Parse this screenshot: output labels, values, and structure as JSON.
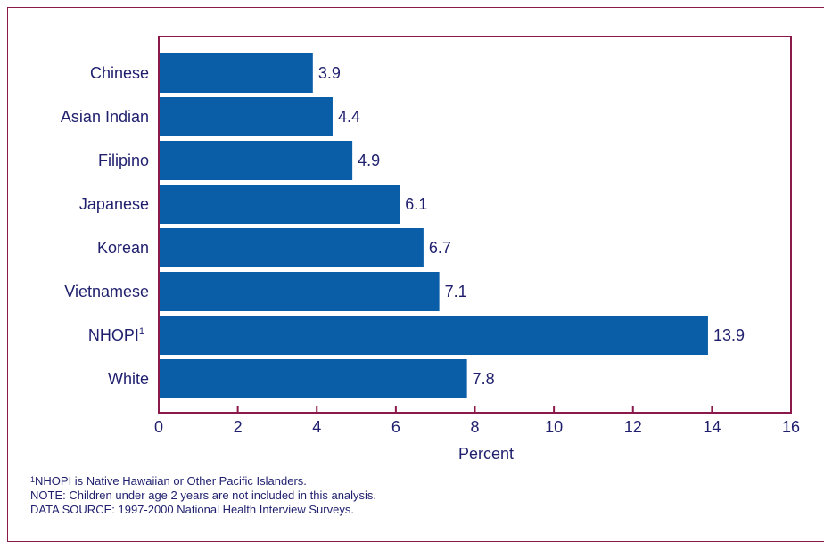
{
  "chart_data": {
    "type": "bar",
    "orientation": "horizontal",
    "categories": [
      "Chinese",
      "Asian Indian",
      "Filipino",
      "Japanese",
      "Korean",
      "Vietnamese",
      "NHOPI",
      "White"
    ],
    "category_superscripts": [
      "",
      "",
      "",
      "",
      "",
      "",
      "1",
      ""
    ],
    "values": [
      3.9,
      4.4,
      4.9,
      6.1,
      6.7,
      7.1,
      13.9,
      7.8
    ],
    "value_labels": [
      "3.9",
      "4.4",
      "4.9",
      "6.1",
      "6.7",
      "7.1",
      "13.9",
      "7.8"
    ],
    "xlabel": "Percent",
    "xlim": [
      0,
      16
    ],
    "xticks": [
      0,
      2,
      4,
      6,
      8,
      10,
      12,
      14,
      16
    ],
    "grid": false,
    "colors": {
      "bar": "#0a5ea8",
      "axis": "#8b1a4a",
      "text": "#1f1f6e"
    }
  },
  "footnotes": {
    "footnote_marker": "1",
    "footnote_text": "NHOPI is Native Hawaiian or Other Pacific Islanders.",
    "note": "NOTE: Children under age 2 years are not included in this analysis.",
    "source": "DATA SOURCE: 1997-2000 National Health Interview Surveys."
  }
}
